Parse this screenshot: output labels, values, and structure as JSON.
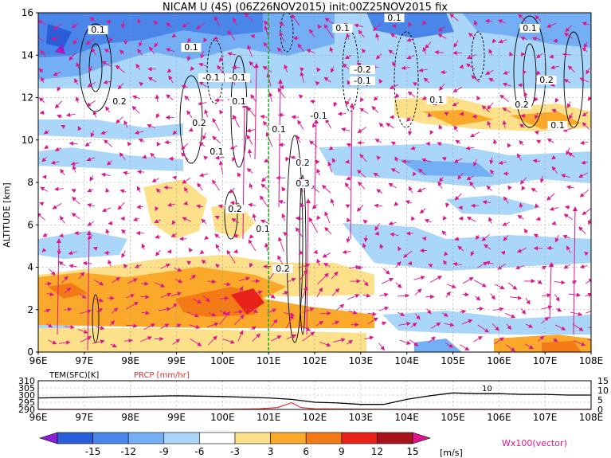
{
  "title": "NICAM U (4S) (06Z26NOV2015) init:00Z25NOV2015 fix",
  "chart_data": [
    {
      "type": "heatmap",
      "title": "NICAM U (4S) (06Z26NOV2015) init:00Z25NOV2015 fix",
      "xlabel": "",
      "ylabel": "ALTITUDE [km]",
      "x_ticks": [
        "96E",
        "97E",
        "98E",
        "99E",
        "100E",
        "101E",
        "102E",
        "103E",
        "104E",
        "105E",
        "106E",
        "107E",
        "108E"
      ],
      "x_range": [
        96,
        108
      ],
      "y_ticks": [
        "0",
        "2",
        "4",
        "6",
        "8",
        "10",
        "12",
        "14",
        "16"
      ],
      "y_range": [
        0,
        16
      ],
      "marker_line_lon": 101.0,
      "contour_labels": [
        "0.1",
        "0.1",
        "0.1",
        "0.1",
        "-0.1",
        "-0.1",
        "-0.2",
        "-0.1",
        "-0.1",
        "0.1",
        "0.2",
        "0.2",
        "0.2",
        "0.1",
        "0.1",
        "0.2",
        "0.3",
        "0.2",
        "0.1",
        "0.2",
        "0.1",
        "0.2",
        "0.1",
        "0.1"
      ],
      "legend_vector": "Wx100(vector)"
    },
    {
      "type": "line",
      "series": [
        {
          "name": "TEM(SFC)[K]",
          "color": "#000000",
          "x": [
            96,
            97,
            98,
            99,
            100,
            101,
            101.5,
            102,
            102.5,
            103,
            103.5,
            104,
            104.5,
            105,
            105.5,
            106,
            106.5,
            107,
            107.5,
            108
          ],
          "values": [
            298,
            298.5,
            299,
            299.5,
            299,
            298,
            297,
            295,
            294.5,
            293.5,
            293.5,
            297,
            299.5,
            301.5,
            301,
            301,
            300.5,
            300.5,
            300,
            300
          ]
        },
        {
          "name": "PRCP [mm/hr]",
          "color": "#e03030",
          "x": [
            96,
            98,
            100,
            100.8,
            101.2,
            101.5,
            101.7,
            102,
            102.5,
            103,
            104,
            105,
            106,
            107,
            108
          ],
          "values": [
            0,
            0,
            0,
            0.3,
            1.0,
            3.5,
            1.0,
            0.3,
            0.2,
            0.1,
            0,
            0,
            0,
            0,
            0
          ]
        }
      ],
      "left_axis_ticks": [
        "290",
        "295",
        "300",
        "305",
        "310"
      ],
      "left_range": [
        290,
        310
      ],
      "right_axis_ticks": [
        "0",
        "5",
        "10",
        "15"
      ],
      "right_range": [
        0,
        15
      ],
      "x_ticks": [
        "96E",
        "97E",
        "98E",
        "99E",
        "100E",
        "101E",
        "102E",
        "103E",
        "104E",
        "105E",
        "106E",
        "107E",
        "108E"
      ],
      "annotation": "10"
    }
  ],
  "colorbar": {
    "labels": [
      "-15",
      "-12",
      "-9",
      "-6",
      "-3",
      "3",
      "6",
      "9",
      "12",
      "15"
    ],
    "unit": "[m/s]",
    "colors": [
      "#8a1fd6",
      "#2a5ed8",
      "#4a86ea",
      "#74aef5",
      "#a9d6f9",
      "#ffffff",
      "#fde08a",
      "#fba92a",
      "#f47a16",
      "#e82218",
      "#a8121a",
      "#e0148c"
    ]
  }
}
